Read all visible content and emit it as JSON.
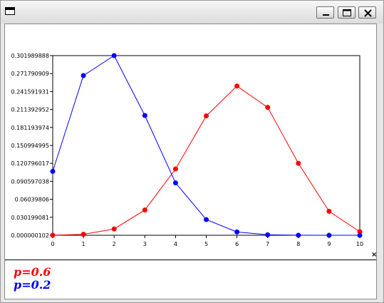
{
  "window": {
    "title": "",
    "icons": {
      "app": "window-icon",
      "minimize": "minimize-icon",
      "maximize": "maximize-icon",
      "close": "close-icon"
    }
  },
  "chart_close_glyph": "×",
  "legend": [
    {
      "label": "p=0.6",
      "color": "#ff0000"
    },
    {
      "label": "p=0.2",
      "color": "#0000ff"
    }
  ],
  "chart_data": {
    "type": "line",
    "x": [
      0,
      1,
      2,
      3,
      4,
      5,
      6,
      7,
      8,
      9,
      10
    ],
    "xlim": [
      0,
      10
    ],
    "ylim": [
      1.02e-07,
      0.301989888
    ],
    "xticks": [
      "0",
      "1",
      "2",
      "3",
      "4",
      "5",
      "6",
      "7",
      "8",
      "9",
      "10"
    ],
    "yticks": [
      "0.000000102",
      "0.030199081",
      "0.06039806",
      "0.090597038",
      "0.120796017",
      "0.150994995",
      "0.181193974",
      "0.211392952",
      "0.241591931",
      "0.271790909",
      "0.301989888"
    ],
    "grid": false,
    "markers": true,
    "series": [
      {
        "name": "p=0.6",
        "color": "#ff0000",
        "values": [
          0.000105,
          0.001573,
          0.010617,
          0.042467,
          0.111477,
          0.200658,
          0.250823,
          0.214991,
          0.120932,
          0.040311,
          0.006047
        ]
      },
      {
        "name": "p=0.2",
        "color": "#0000ff",
        "values": [
          0.107374,
          0.268435,
          0.30199,
          0.201327,
          0.08808,
          0.026424,
          0.005505,
          0.000786,
          7.4e-05,
          4e-06,
          1.02e-07
        ]
      }
    ]
  }
}
